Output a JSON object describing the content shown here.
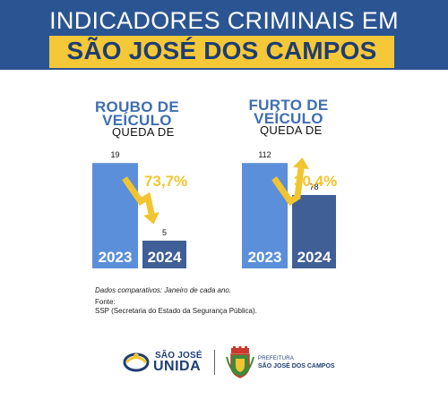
{
  "header": {
    "line1": "INDICADORES CRIMINAIS EM",
    "line2": "SÃO JOSÉ DOS CAMPOS"
  },
  "colors": {
    "header_bg": "#2b5592",
    "banner_yellow": "#f5c838",
    "bar_2023": "#5b8fd9",
    "bar_2024": "#3f5f96",
    "arrow": "#f2c530",
    "title_blue": "#3f6eb0"
  },
  "chart_data": [
    {
      "type": "bar",
      "title": "ROUBO  DE VEÍCULO",
      "subtitle": "QUEDA DE",
      "decline_label": "73,7%",
      "categories": [
        "2023",
        "2024"
      ],
      "values": [
        19,
        5
      ],
      "value_labels": [
        "19",
        "5"
      ],
      "ylim": [
        0,
        20
      ]
    },
    {
      "type": "bar",
      "title": "FURTO DE VEÍCULO",
      "subtitle": "QUEDA DE",
      "decline_label": "30,4%",
      "categories": [
        "2023",
        "2024"
      ],
      "values": [
        112,
        78
      ],
      "value_labels": [
        "112",
        "78"
      ],
      "ylim": [
        0,
        117.9
      ]
    }
  ],
  "notes": {
    "comparison": "Dados comparativos: Janeiro de cada ano.",
    "source_label": "Fonte:",
    "source_text": "SSP (Secretaria do Estado da Segurança Pública)."
  },
  "footer": {
    "logo1_top": "SÃO JOSÉ",
    "logo1_bottom": "UNIDA",
    "logo2_top": "PREFEITURA",
    "logo2_bottom": "SÃO JOSÉ DOS CAMPOS"
  }
}
